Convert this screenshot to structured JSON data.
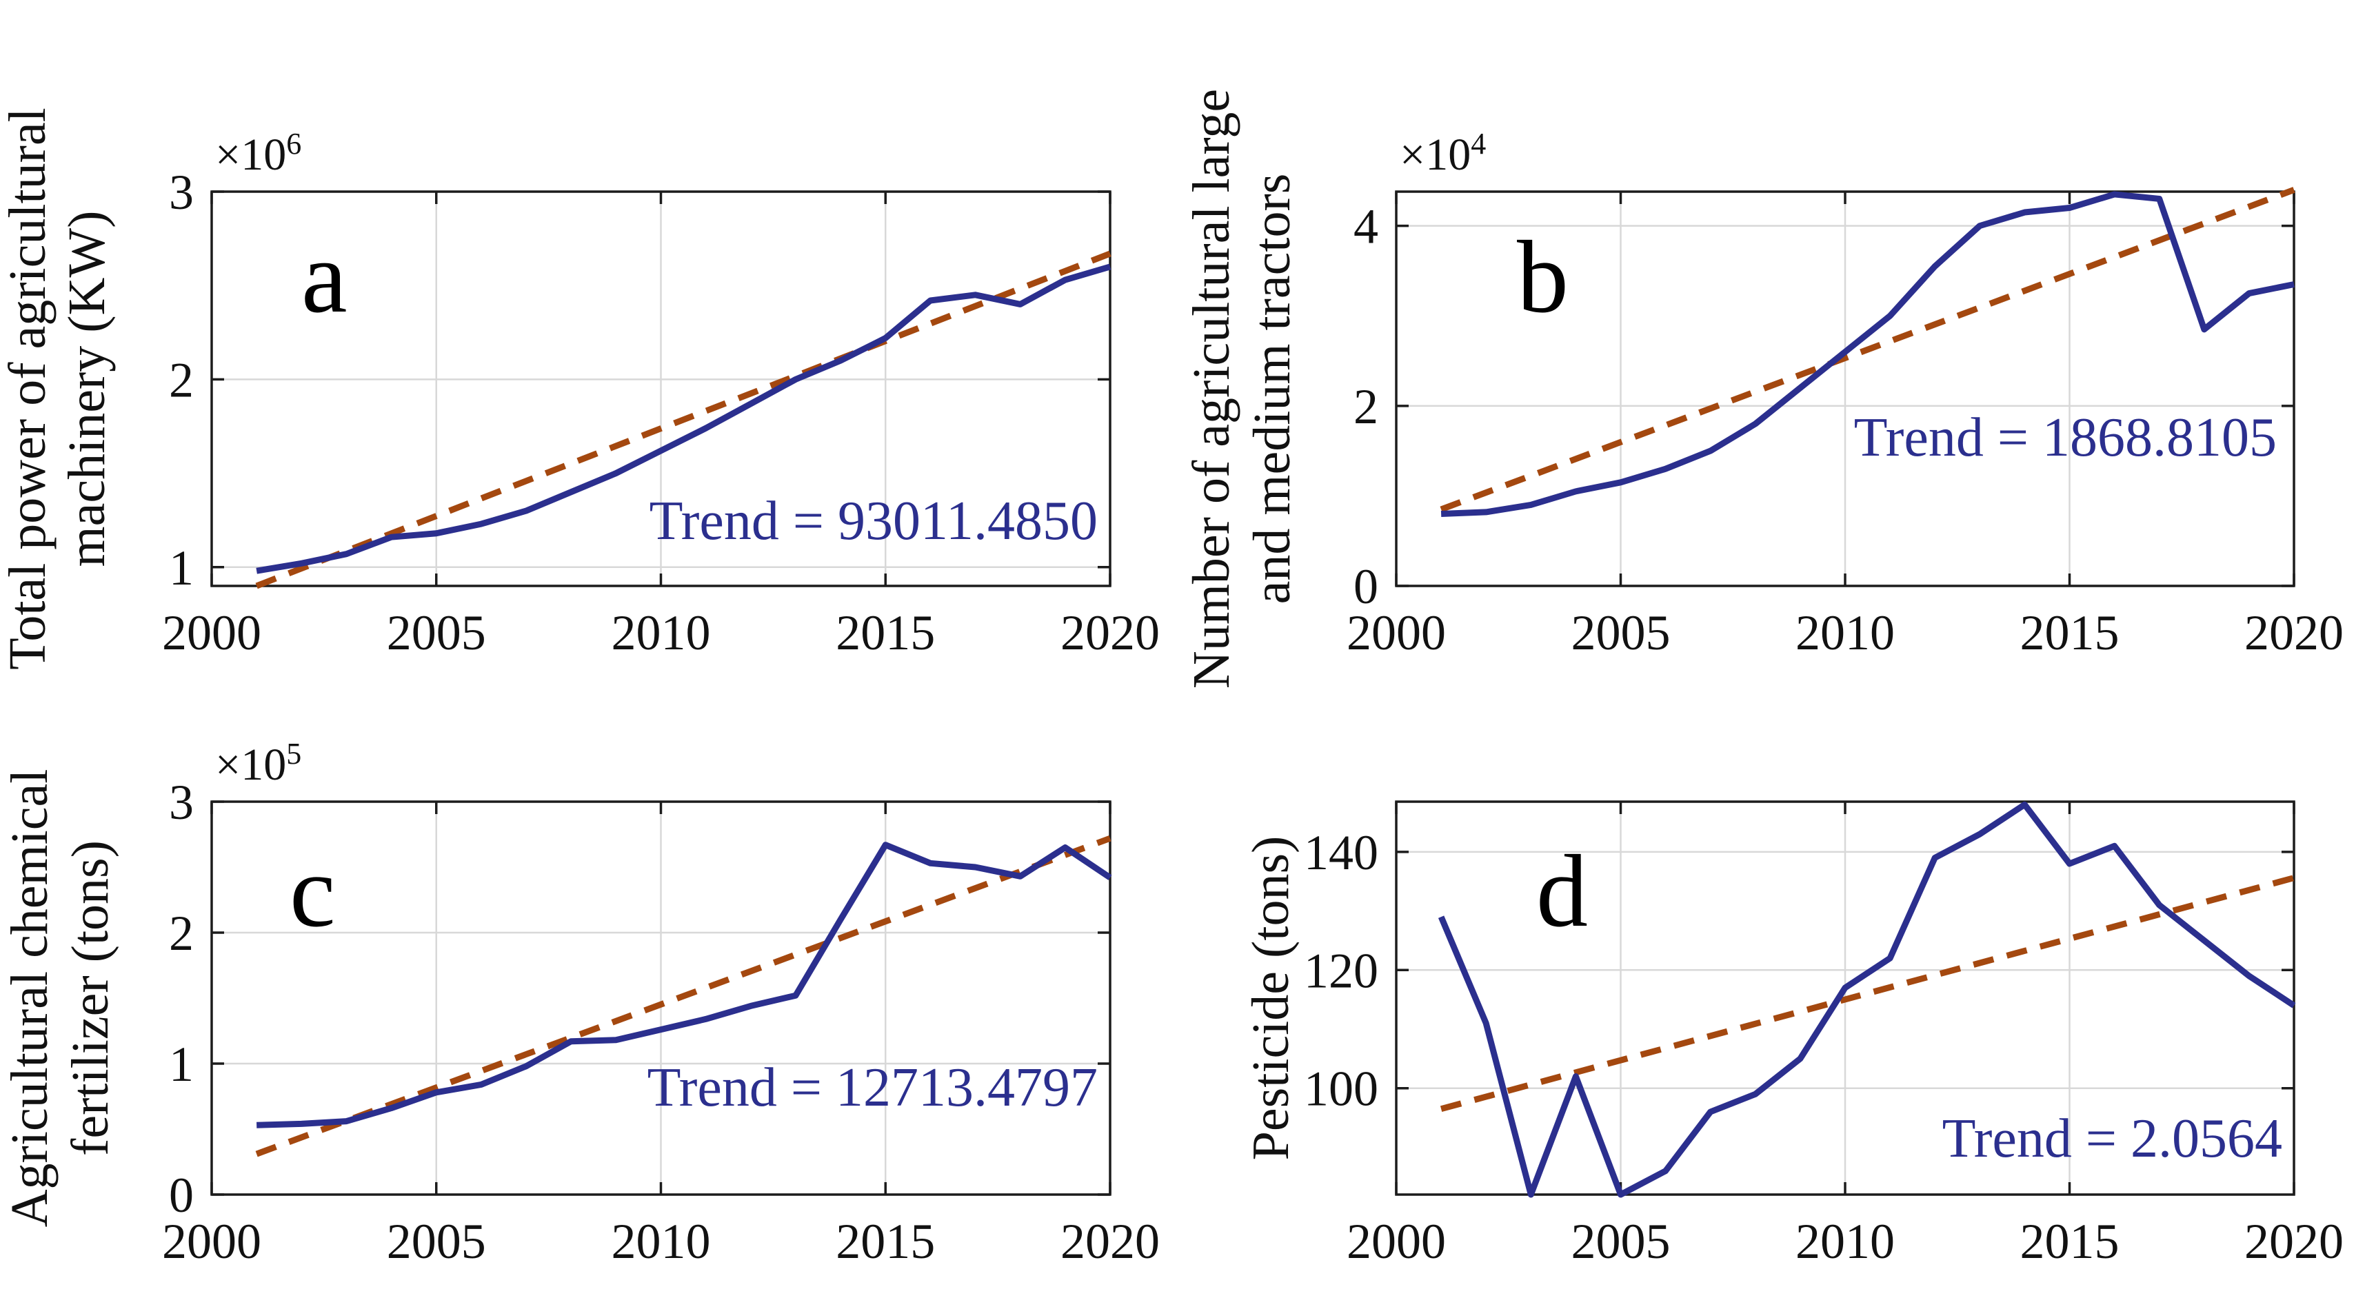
{
  "figure": {
    "background": "#ffffff",
    "colors": {
      "data_line": "#2B2F8E",
      "trend_line": "#A4480F",
      "grid": "#D8D8D8",
      "axis": "#1C1C1C",
      "trend_text": "#2B2F8E",
      "label_text": "#111111"
    }
  },
  "chart_data": [
    {
      "panel_letter": "a",
      "type": "line",
      "ylabel_lines": [
        "Total power of agricultural",
        "machinery (KW)"
      ],
      "y_exponent_base": "×10",
      "y_exponent_power": "6",
      "trend_label": "Trend = 93011.4850",
      "trend_slope": 93011.485,
      "grid": true,
      "legend_position": "none",
      "xlim": [
        2000,
        2020
      ],
      "ylim": [
        0.9,
        3.0
      ],
      "xticks": [
        2000,
        2005,
        2010,
        2015,
        2020
      ],
      "yticks": [
        1,
        2,
        3
      ],
      "years": [
        2001,
        2002,
        2003,
        2004,
        2005,
        2006,
        2007,
        2008,
        2009,
        2010,
        2011,
        2012,
        2013,
        2014,
        2015,
        2016,
        2017,
        2018,
        2019,
        2020
      ],
      "values": [
        0.98,
        1.02,
        1.07,
        1.16,
        1.18,
        1.23,
        1.3,
        1.4,
        1.5,
        1.62,
        1.74,
        1.87,
        2.0,
        2.1,
        2.22,
        2.42,
        2.45,
        2.4,
        2.53,
        2.6
      ],
      "trend_points": {
        "years": [
          2001,
          2020
        ],
        "values": [
          0.9,
          2.67
        ]
      }
    },
    {
      "panel_letter": "b",
      "type": "line",
      "ylabel_lines": [
        "Number of agricultural large",
        "and medium tractors"
      ],
      "y_exponent_base": "×10",
      "y_exponent_power": "4",
      "trend_label": "Trend = 1868.8105",
      "trend_slope": 1868.8105,
      "grid": true,
      "legend_position": "none",
      "xlim": [
        2000,
        2020
      ],
      "ylim": [
        0,
        4.38
      ],
      "xticks": [
        2000,
        2005,
        2010,
        2015,
        2020
      ],
      "yticks": [
        0,
        2,
        4
      ],
      "years": [
        2001,
        2002,
        2003,
        2004,
        2005,
        2006,
        2007,
        2008,
        2009,
        2010,
        2011,
        2012,
        2013,
        2014,
        2015,
        2016,
        2017,
        2018,
        2019,
        2020
      ],
      "values": [
        0.8,
        0.82,
        0.9,
        1.05,
        1.15,
        1.3,
        1.5,
        1.8,
        2.2,
        2.6,
        3.0,
        3.55,
        4.0,
        4.15,
        4.2,
        4.35,
        4.3,
        2.85,
        3.25,
        3.35
      ],
      "trend_points": {
        "years": [
          2001,
          2020
        ],
        "values": [
          0.85,
          4.4
        ]
      }
    },
    {
      "panel_letter": "c",
      "type": "line",
      "ylabel_lines": [
        "Agricultural chemical",
        "fertilizer (tons)"
      ],
      "y_exponent_base": "×10",
      "y_exponent_power": "5",
      "trend_label": "Trend = 12713.4797",
      "trend_slope": 12713.4797,
      "grid": true,
      "legend_position": "none",
      "xlim": [
        2000,
        2020
      ],
      "ylim": [
        0,
        3.0
      ],
      "xticks": [
        2000,
        2005,
        2010,
        2015,
        2020
      ],
      "yticks": [
        0,
        1,
        2,
        3
      ],
      "years": [
        2001,
        2002,
        2003,
        2004,
        2005,
        2006,
        2007,
        2008,
        2009,
        2010,
        2011,
        2012,
        2013,
        2014,
        2015,
        2016,
        2017,
        2018,
        2019,
        2020
      ],
      "values": [
        0.53,
        0.54,
        0.56,
        0.66,
        0.78,
        0.84,
        0.98,
        1.17,
        1.18,
        1.26,
        1.34,
        1.44,
        1.52,
        2.1,
        2.67,
        2.53,
        2.5,
        2.43,
        2.65,
        2.42
      ],
      "trend_points": {
        "years": [
          2001,
          2020
        ],
        "values": [
          0.31,
          2.72
        ]
      }
    },
    {
      "panel_letter": "d",
      "type": "line",
      "ylabel_lines": [
        "Pesticide (tons)"
      ],
      "trend_label": "Trend = 2.0564",
      "trend_slope": 2.0564,
      "grid": true,
      "legend_position": "none",
      "xlim": [
        2000,
        2020
      ],
      "ylim": [
        82,
        148.5
      ],
      "xticks": [
        2000,
        2005,
        2010,
        2015,
        2020
      ],
      "yticks": [
        100,
        120,
        140
      ],
      "years": [
        2001,
        2002,
        2003,
        2004,
        2005,
        2006,
        2007,
        2008,
        2009,
        2010,
        2011,
        2012,
        2013,
        2014,
        2015,
        2016,
        2017,
        2018,
        2019,
        2020
      ],
      "values": [
        129,
        111,
        82,
        102,
        82,
        86,
        96,
        99,
        105,
        117,
        122,
        139,
        143,
        148,
        138,
        141,
        131,
        125,
        119,
        114
      ],
      "trend_points": {
        "years": [
          2001,
          2020
        ],
        "values": [
          96.5,
          135.6
        ]
      }
    }
  ]
}
